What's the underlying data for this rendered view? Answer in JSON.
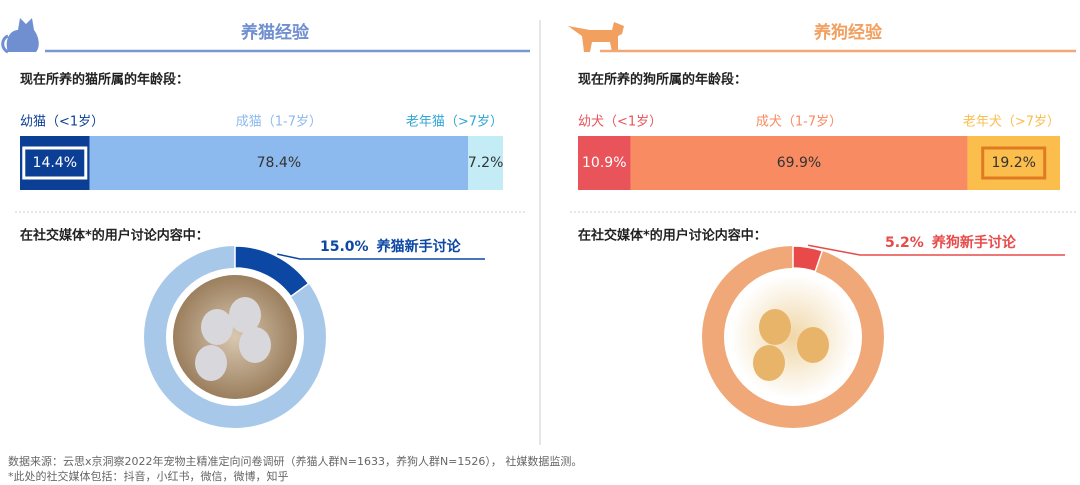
{
  "panels": [
    {
      "heading": "养猫经验"
    },
    {
      "heading": "养狗经验"
    }
  ],
  "chart_data": [
    {
      "type": "bar",
      "title": "现在所养的猫所属的年龄段：",
      "xlim": [
        0,
        100
      ],
      "highlight": 0,
      "series": [
        {
          "name": "幼猫（<1岁）",
          "color": "#0b3f96",
          "values": [
            14.4
          ],
          "value_labels": [
            "14.4%"
          ]
        },
        {
          "name": "成猫（1-7岁）",
          "color": "#8cb9ee",
          "values": [
            78.4
          ],
          "value_labels": [
            "78.4%"
          ]
        },
        {
          "name": "老年猫（>7岁）",
          "color": "#c3ecf7",
          "values": [
            7.2
          ],
          "value_labels": [
            "7.2%"
          ]
        }
      ]
    },
    {
      "type": "pie",
      "title": "在社交媒体*的用户讨论内容中：",
      "categories": [
        "养猫新手讨论"
      ],
      "values": [
        15.0
      ],
      "value_labels": [
        "15.0%"
      ],
      "color": "#0b47a3",
      "ring_color": "#a8c8ea"
    },
    {
      "type": "bar",
      "title": "现在所养的狗所属的年龄段：",
      "xlim": [
        0,
        100
      ],
      "highlight": 2,
      "series": [
        {
          "name": "幼犬（<1岁）",
          "color": "#e8545a",
          "values": [
            10.9
          ],
          "value_labels": [
            "10.9%"
          ]
        },
        {
          "name": "成犬（1-7岁）",
          "color": "#f98b63",
          "values": [
            69.9
          ],
          "value_labels": [
            "69.9%"
          ]
        },
        {
          "name": "老年犬（>7岁）",
          "color": "#fbbd4c",
          "values": [
            19.2
          ],
          "value_labels": [
            "19.2%"
          ]
        }
      ]
    },
    {
      "type": "pie",
      "title": "在社交媒体*的用户讨论内容中：",
      "categories": [
        "养狗新手讨论"
      ],
      "values": [
        5.2
      ],
      "value_labels": [
        "5.2%"
      ],
      "color": "#e84a4a",
      "ring_color": "#f1a878"
    }
  ],
  "footnote": [
    "数据来源：云思x京洞察2022年宠物主精准定向问卷调研（养猫人群N=1633，养狗人群N=1526）， 社媒数据监测。",
    "*此处的社交媒体包括：抖音，小红书，微信，微博，知乎"
  ]
}
